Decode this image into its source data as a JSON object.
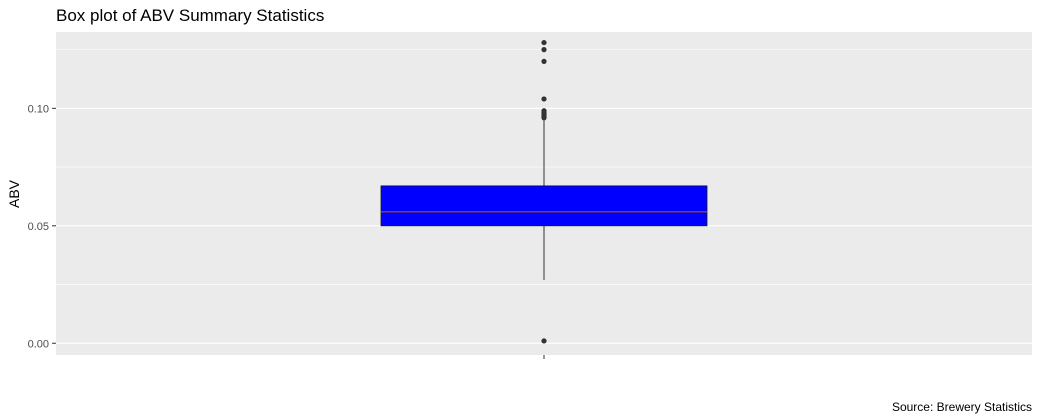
{
  "chart_data": {
    "type": "box",
    "title": "Box plot of ABV Summary Statistics",
    "xlabel": "",
    "ylabel": "ABV",
    "caption": "Source: Brewery Statistics",
    "ylim": [
      -0.005,
      0.1325
    ],
    "y_ticks": [
      0.0,
      0.05,
      0.1
    ],
    "y_tick_labels": [
      "0.00",
      "0.05",
      "0.10"
    ],
    "grid": true,
    "legend": "none",
    "box": {
      "min_whisker": 0.027,
      "q1": 0.05,
      "median": 0.056,
      "q3": 0.067,
      "max_whisker": 0.095
    },
    "outliers": [
      0.001,
      0.096,
      0.0965,
      0.097,
      0.0975,
      0.098,
      0.0985,
      0.099,
      0.104,
      0.12,
      0.125,
      0.128
    ],
    "colors": {
      "panel": "#ebebeb",
      "grid": "#ffffff",
      "box_fill": "#0000ff",
      "median_line": "#8b4513",
      "whisker": "#333333",
      "outlier": "#333333",
      "text": "#000000",
      "tick_text": "#4d4d4d"
    }
  }
}
